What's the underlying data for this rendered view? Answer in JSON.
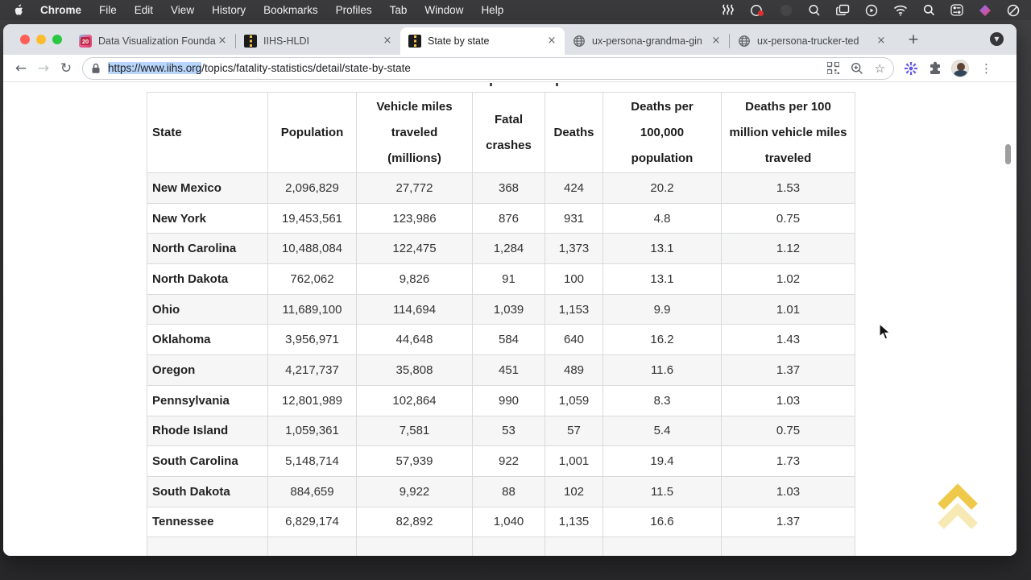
{
  "menu_bar": {
    "app_name": "Chrome",
    "items": [
      "File",
      "Edit",
      "View",
      "History",
      "Bookmarks",
      "Profiles",
      "Tab",
      "Window",
      "Help"
    ],
    "status_icons": [
      "shortcuts-icon",
      "creative-cloud-icon",
      "screen-recording-icon",
      "zoom-loupe-icon",
      "mission-control-icon",
      "now-playing-icon",
      "wifi-icon",
      "spotlight-search-icon",
      "control-center-icon",
      "raycast-icon",
      "focus-mode-icon"
    ]
  },
  "browser": {
    "tabs": [
      {
        "title": "Data Visualization Founda",
        "favicon": "dataviz-20-icon",
        "favicon_text": "20",
        "active": false
      },
      {
        "title": "IIHS-HLDI",
        "favicon": "iihs-road-icon",
        "active": false
      },
      {
        "title": "State by state",
        "favicon": "iihs-road-icon",
        "active": true
      },
      {
        "title": "ux-persona-grandma-gin",
        "favicon": "globe-icon",
        "active": false
      },
      {
        "title": "ux-persona-trucker-ted",
        "favicon": "globe-icon",
        "active": false
      }
    ],
    "new_tab_label": "+",
    "tab_search_label": "▼",
    "close_label": "×",
    "back_label": "←",
    "forward_label": "→",
    "reload_label": "↻",
    "url_selected": "https://www.iihs.org",
    "url_rest": "/topics/fatality-statistics/detail/state-by-state",
    "star_label": "☆",
    "kebab_label": "⋮"
  },
  "page": {
    "table": {
      "columns": [
        "State",
        "Population",
        "Vehicle miles traveled (millions)",
        "Fatal crashes",
        "Deaths",
        "Deaths per 100,000 population",
        "Deaths per 100 million vehicle miles traveled"
      ],
      "rows": [
        [
          "New Mexico",
          "2,096,829",
          "27,772",
          "368",
          "424",
          "20.2",
          "1.53"
        ],
        [
          "New York",
          "19,453,561",
          "123,986",
          "876",
          "931",
          "4.8",
          "0.75"
        ],
        [
          "North Carolina",
          "10,488,084",
          "122,475",
          "1,284",
          "1,373",
          "13.1",
          "1.12"
        ],
        [
          "North Dakota",
          "762,062",
          "9,826",
          "91",
          "100",
          "13.1",
          "1.02"
        ],
        [
          "Ohio",
          "11,689,100",
          "114,694",
          "1,039",
          "1,153",
          "9.9",
          "1.01"
        ],
        [
          "Oklahoma",
          "3,956,971",
          "44,648",
          "584",
          "640",
          "16.2",
          "1.43"
        ],
        [
          "Oregon",
          "4,217,737",
          "35,808",
          "451",
          "489",
          "11.6",
          "1.37"
        ],
        [
          "Pennsylvania",
          "12,801,989",
          "102,864",
          "990",
          "1,059",
          "8.3",
          "1.03"
        ],
        [
          "Rhode Island",
          "1,059,361",
          "7,581",
          "53",
          "57",
          "5.4",
          "0.75"
        ],
        [
          "South Carolina",
          "5,148,714",
          "57,939",
          "922",
          "1,001",
          "19.4",
          "1.73"
        ],
        [
          "South Dakota",
          "884,659",
          "9,922",
          "88",
          "102",
          "11.5",
          "1.03"
        ],
        [
          "Tennessee",
          "6,829,174",
          "82,892",
          "1,040",
          "1,135",
          "16.6",
          "1.37"
        ]
      ]
    }
  },
  "colors": {
    "accent_selection": "#b8d6fb",
    "tabstrip_bg": "#dee1e6",
    "menubar_bg": "#3a3a3d",
    "table_border": "#d9dadb",
    "row_stripe": "#f6f6f6",
    "back_to_top_gold": "#efc94a",
    "iihs_yellow": "#f4c53d"
  }
}
